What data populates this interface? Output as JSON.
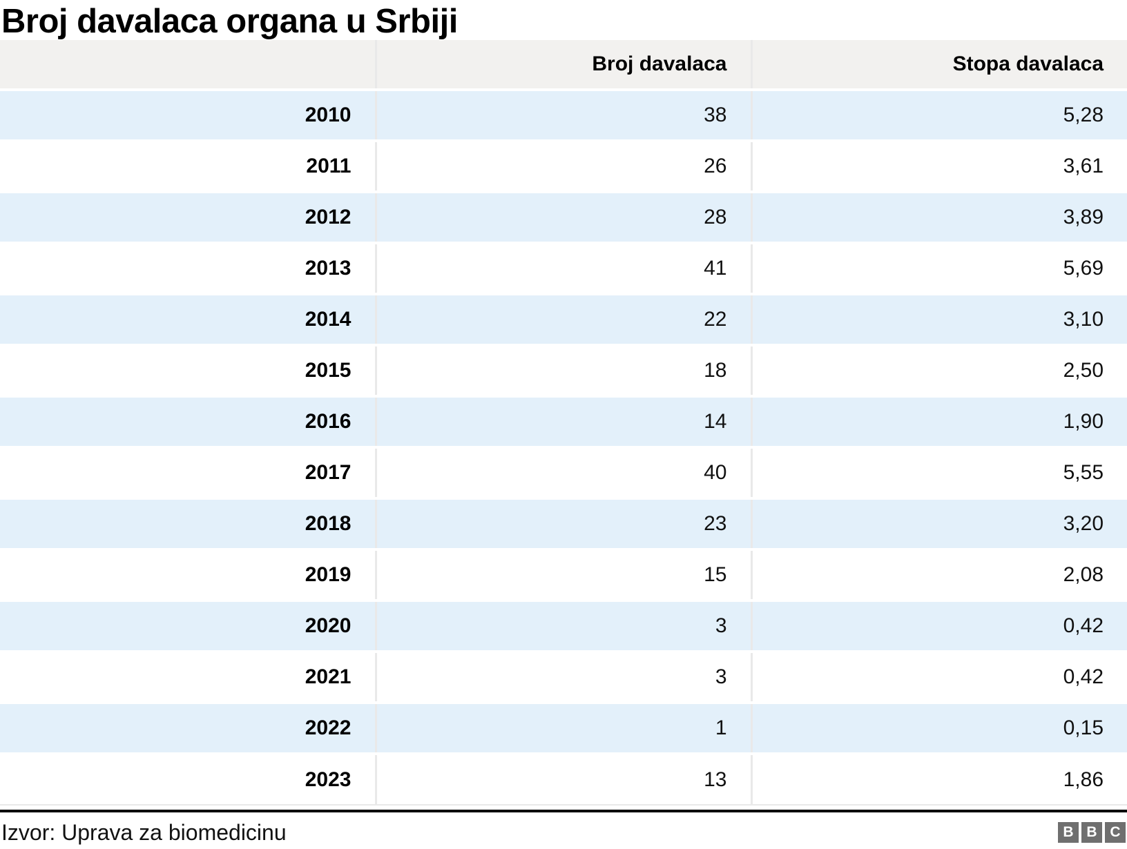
{
  "title": "Broj davalaca organa u Srbiji",
  "source": {
    "label": "Izvor: Uprava za biomedicinu"
  },
  "logo": {
    "name": "bbc-logo",
    "letters": [
      "B",
      "B",
      "C"
    ]
  },
  "colors": {
    "stripe_blue": "#e3f0fa",
    "header_gray": "#f2f1ef",
    "separator_gray": "#e9e9e9",
    "rule_black": "#000000",
    "logo_gray": "#6f6f6f",
    "text": "#111111"
  },
  "chart_data": {
    "type": "table",
    "title": "Broj davalaca organa u Srbiji",
    "columns": [
      "",
      "Broj davalaca",
      "Stopa davalaca"
    ],
    "rows": [
      [
        "2010",
        "38",
        "5,28"
      ],
      [
        "2011",
        "26",
        "3,61"
      ],
      [
        "2012",
        "28",
        "3,89"
      ],
      [
        "2013",
        "41",
        "5,69"
      ],
      [
        "2014",
        "22",
        "3,10"
      ],
      [
        "2015",
        "18",
        "2,50"
      ],
      [
        "2016",
        "14",
        "1,90"
      ],
      [
        "2017",
        "40",
        "5,55"
      ],
      [
        "2018",
        "23",
        "3,20"
      ],
      [
        "2019",
        "15",
        "2,08"
      ],
      [
        "2020",
        "3",
        "0,42"
      ],
      [
        "2021",
        "3",
        "0,42"
      ],
      [
        "2022",
        "1",
        "0,15"
      ],
      [
        "2023",
        "13",
        "1,86"
      ]
    ],
    "notes": {
      "decimal_separator": ",",
      "row_striping": "even rows light blue, odd rows white",
      "alignment": "all columns right-aligned, year column bold"
    }
  }
}
